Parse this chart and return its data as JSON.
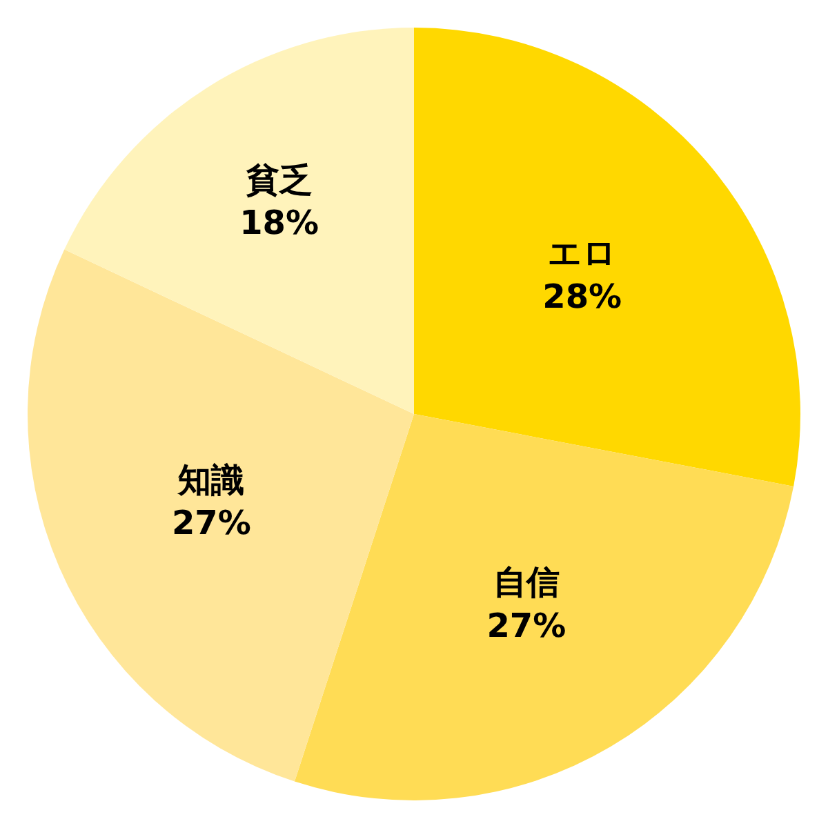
{
  "chart_data": {
    "type": "pie",
    "categories": [
      "エロ",
      "自信",
      "知識",
      "貧乏"
    ],
    "values": [
      28,
      27,
      27,
      18
    ],
    "colors": [
      "#ffd800",
      "#ffdc55",
      "#ffe699",
      "#fff3bb"
    ],
    "value_labels": [
      "28%",
      "27%",
      "27%",
      "18%"
    ],
    "legend": false
  }
}
